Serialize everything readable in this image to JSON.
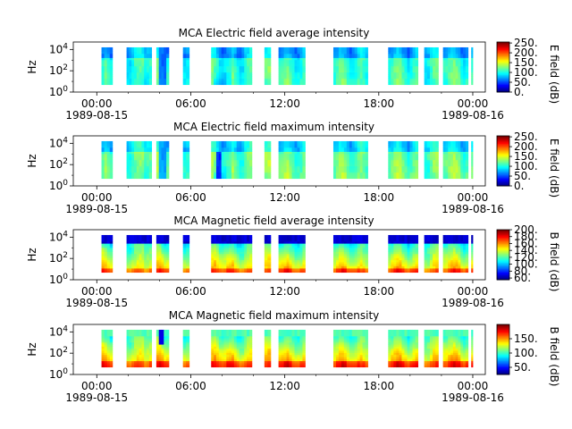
{
  "colors": {
    "background": "#ffffff",
    "axis": "#000000",
    "data_gap": "#ffffff"
  },
  "chart_data": [
    {
      "type": "heatmap",
      "title": "MCA  Electric field average intensity",
      "ylabel": "Hz",
      "colorbar_label": "E field (dB)",
      "colorbar_ticks": [
        0,
        50,
        100,
        150,
        200,
        250
      ],
      "colorbar_range": [
        0,
        255
      ],
      "y_scale": "log",
      "y_ticks": [
        "10^0",
        "10^2",
        "10^4"
      ],
      "ylim_exponent": [
        0,
        4.7
      ],
      "x_ticks": [
        {
          "time": "00:00",
          "date": "1989-08-15"
        },
        {
          "time": "06:00",
          "date": ""
        },
        {
          "time": "12:00",
          "date": ""
        },
        {
          "time": "18:00",
          "date": ""
        },
        {
          "time": "00:00",
          "date": "1989-08-16"
        }
      ],
      "xlim_hours": [
        -1.5,
        24.8
      ],
      "variant": "e_avg"
    },
    {
      "type": "heatmap",
      "title": "MCA  Electric field maximum intensity",
      "ylabel": "Hz",
      "colorbar_label": "E field (dB)",
      "colorbar_ticks": [
        0,
        50,
        100,
        150,
        200,
        250
      ],
      "colorbar_range": [
        0,
        255
      ],
      "y_scale": "log",
      "y_ticks": [
        "10^0",
        "10^2",
        "10^4"
      ],
      "ylim_exponent": [
        0,
        4.7
      ],
      "x_ticks": [
        {
          "time": "00:00",
          "date": "1989-08-15"
        },
        {
          "time": "06:00",
          "date": ""
        },
        {
          "time": "12:00",
          "date": ""
        },
        {
          "time": "18:00",
          "date": ""
        },
        {
          "time": "00:00",
          "date": "1989-08-16"
        }
      ],
      "xlim_hours": [
        -1.5,
        24.8
      ],
      "variant": "e_max"
    },
    {
      "type": "heatmap",
      "title": "MCA  Magnetic field average intensity",
      "ylabel": "Hz",
      "colorbar_label": "B field (dB)",
      "colorbar_ticks": [
        60,
        80,
        100,
        120,
        140,
        160,
        180,
        200
      ],
      "colorbar_range": [
        55,
        200
      ],
      "y_scale": "log",
      "y_ticks": [
        "10^0",
        "10^2",
        "10^4"
      ],
      "ylim_exponent": [
        0,
        4.7
      ],
      "x_ticks": [
        {
          "time": "00:00",
          "date": "1989-08-15"
        },
        {
          "time": "06:00",
          "date": ""
        },
        {
          "time": "12:00",
          "date": ""
        },
        {
          "time": "18:00",
          "date": ""
        },
        {
          "time": "00:00",
          "date": "1989-08-16"
        }
      ],
      "xlim_hours": [
        -1.5,
        24.8
      ],
      "variant": "b_avg"
    },
    {
      "type": "heatmap",
      "title": "MCA  Magnetic field maximum intensity",
      "ylabel": "Hz",
      "colorbar_label": "B field (dB)",
      "colorbar_ticks": [
        50,
        100,
        150
      ],
      "colorbar_range": [
        25,
        200
      ],
      "y_scale": "log",
      "y_ticks": [
        "10^0",
        "10^2",
        "10^4"
      ],
      "ylim_exponent": [
        0,
        4.7
      ],
      "x_ticks": [
        {
          "time": "00:00",
          "date": "1989-08-15"
        },
        {
          "time": "06:00",
          "date": ""
        },
        {
          "time": "12:00",
          "date": ""
        },
        {
          "time": "18:00",
          "date": ""
        },
        {
          "time": "00:00",
          "date": "1989-08-16"
        }
      ],
      "xlim_hours": [
        -1.5,
        24.8
      ],
      "variant": "b_max"
    }
  ],
  "data_intervals_hours": [
    [
      0.3,
      1.0
    ],
    [
      1.9,
      3.5
    ],
    [
      3.8,
      4.6
    ],
    [
      5.5,
      5.9
    ],
    [
      7.3,
      9.9
    ],
    [
      10.7,
      11.1
    ],
    [
      11.6,
      13.3
    ],
    [
      15.1,
      17.3
    ],
    [
      18.6,
      20.5
    ],
    [
      20.9,
      21.8
    ],
    [
      22.1,
      23.7
    ],
    [
      23.9,
      24.0
    ]
  ],
  "data_freq_range_exponent": [
    0.7,
    4.2
  ]
}
